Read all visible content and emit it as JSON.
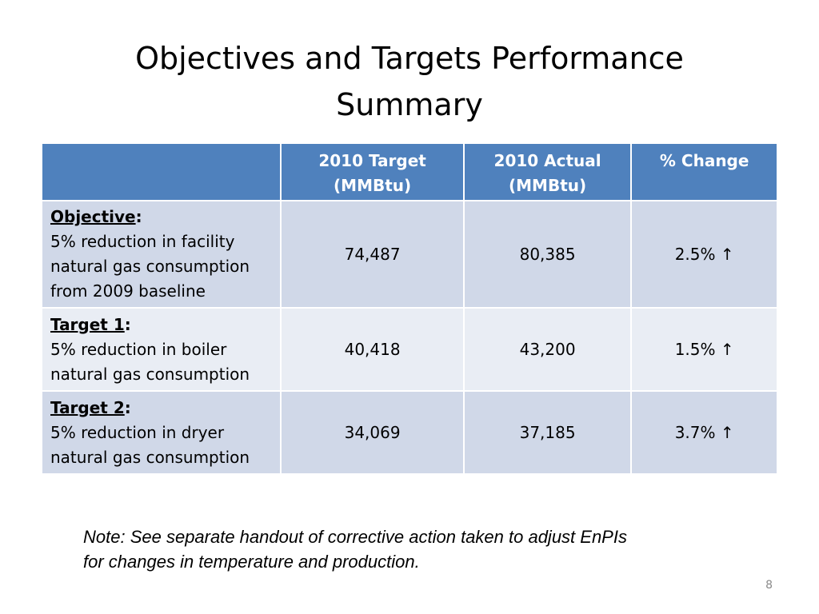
{
  "slide": {
    "title_line1": "Objectives and Targets Performance",
    "title_line2": "Summary",
    "note_line1": "Note:  See separate handout of corrective action taken to adjust EnPIs",
    "note_line2": "for changes in temperature and production.",
    "page_number": "8"
  },
  "table": {
    "headers": [
      {
        "line1": "",
        "line2": ""
      },
      {
        "line1": "2010 Target",
        "line2": "(MMBtu)"
      },
      {
        "line1": "2010 Actual",
        "line2": "(MMBtu)"
      },
      {
        "line1": "% Change",
        "line2": ""
      }
    ],
    "rows": [
      {
        "label": "Objective",
        "lines": [
          "5% reduction in facility",
          "natural gas consumption",
          "from 2009 baseline"
        ],
        "target": "74,487",
        "actual": "80,385",
        "change": "2.5% ↑"
      },
      {
        "label": "Target 1",
        "lines": [
          "5% reduction in boiler",
          "natural gas consumption"
        ],
        "target": "40,418",
        "actual": "43,200",
        "change": "1.5% ↑"
      },
      {
        "label": "Target 2",
        "lines": [
          "5% reduction in dryer",
          "natural gas consumption"
        ],
        "target": "34,069",
        "actual": "37,185",
        "change": "3.7% ↑"
      }
    ]
  }
}
